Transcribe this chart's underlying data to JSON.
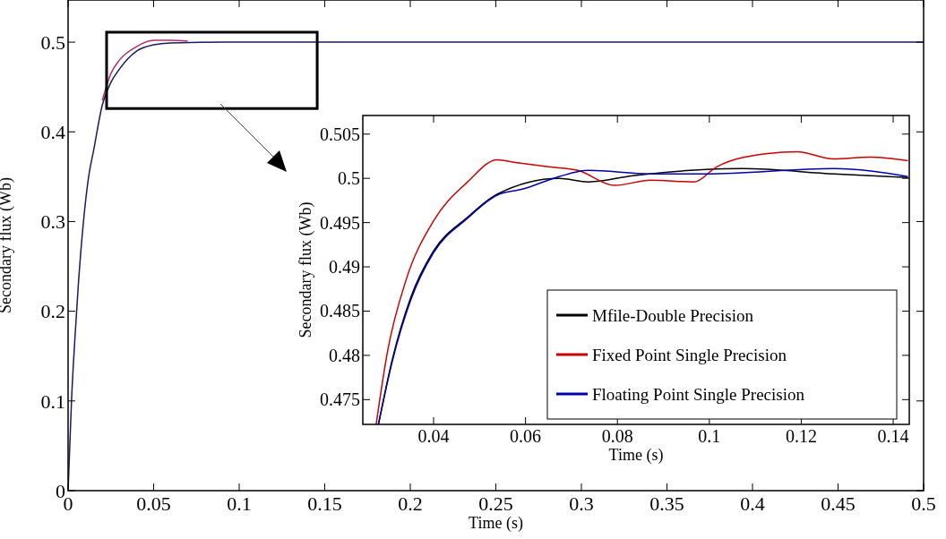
{
  "chart_data": [
    {
      "type": "line",
      "xlabel": "Time (s)",
      "ylabel": "Secondary flux (Wb)",
      "xlim": [
        0,
        0.5
      ],
      "ylim": [
        0,
        0.547
      ],
      "xticks": [
        0,
        0.05,
        0.1,
        0.15,
        0.2,
        0.25,
        0.3,
        0.35,
        0.4,
        0.45,
        0.5
      ],
      "yticks": [
        0,
        0.1,
        0.2,
        0.3,
        0.4,
        0.5
      ],
      "legend": false,
      "series": [
        {
          "color": "#1a1a66",
          "x": [
            0,
            0.001,
            0.002,
            0.004,
            0.006,
            0.009,
            0.012,
            0.015,
            0.02,
            0.025,
            0.03,
            0.04,
            0.05,
            0.06,
            0.1,
            0.15,
            0.2,
            0.3,
            0.4,
            0.5
          ],
          "values": [
            0,
            0.05,
            0.1,
            0.17,
            0.23,
            0.3,
            0.35,
            0.38,
            0.43,
            0.455,
            0.47,
            0.49,
            0.497,
            0.499,
            0.5,
            0.5,
            0.5,
            0.5,
            0.5,
            0.5
          ]
        },
        {
          "color": "#b03060",
          "x": [
            0.02,
            0.025,
            0.03,
            0.04,
            0.05,
            0.06,
            0.07
          ],
          "values": [
            0.435,
            0.465,
            0.48,
            0.495,
            0.502,
            0.502,
            0.501
          ]
        }
      ]
    },
    {
      "type": "line",
      "xlabel": "Time (s)",
      "ylabel": "Secondary flux (Wb)",
      "xlim": [
        0.0246,
        0.1435
      ],
      "ylim": [
        0.4722,
        0.5071
      ],
      "xticks": [
        0.04,
        0.06,
        0.08,
        0.1,
        0.12,
        0.14
      ],
      "yticks": [
        0.475,
        0.48,
        0.485,
        0.49,
        0.495,
        0.5,
        0.505
      ],
      "legend": "bottom right",
      "series": [
        {
          "name": "Mfile-Double Precision",
          "color": "#000000",
          "x": [
            0.028,
            0.031,
            0.035,
            0.04,
            0.0474,
            0.0538,
            0.0673,
            0.0737,
            0.0833,
            0.0993,
            0.1072,
            0.1271,
            0.1432
          ],
          "values": [
            0.4722,
            0.4795,
            0.4865,
            0.4918,
            0.4956,
            0.4982,
            0.5,
            0.4996,
            0.5003,
            0.501,
            0.5011,
            0.5005,
            0.5001
          ]
        },
        {
          "name": "Fixed Point Single Precision",
          "color": "#cc0000",
          "x": [
            0.0275,
            0.03,
            0.034,
            0.04,
            0.0474,
            0.0538,
            0.0578,
            0.065,
            0.0714,
            0.0794,
            0.0872,
            0.0967,
            0.1016,
            0.1127,
            0.1191,
            0.127,
            0.135,
            0.1432
          ],
          "values": [
            0.4722,
            0.4805,
            0.4885,
            0.4952,
            0.4996,
            0.5021,
            0.5018,
            0.5013,
            0.5009,
            0.4992,
            0.4998,
            0.4996,
            0.5013,
            0.5028,
            0.503,
            0.5022,
            0.5024,
            0.502
          ]
        },
        {
          "name": "Floating Point Single Precision",
          "color": "#0000aa",
          "x": [
            0.028,
            0.031,
            0.035,
            0.04,
            0.0474,
            0.0538,
            0.0595,
            0.0673,
            0.0737,
            0.0872,
            0.0993,
            0.1271,
            0.1432
          ],
          "values": [
            0.4722,
            0.4793,
            0.4862,
            0.4916,
            0.4955,
            0.4981,
            0.4988,
            0.5002,
            0.5009,
            0.5005,
            0.5005,
            0.5011,
            0.5002
          ]
        }
      ]
    }
  ]
}
